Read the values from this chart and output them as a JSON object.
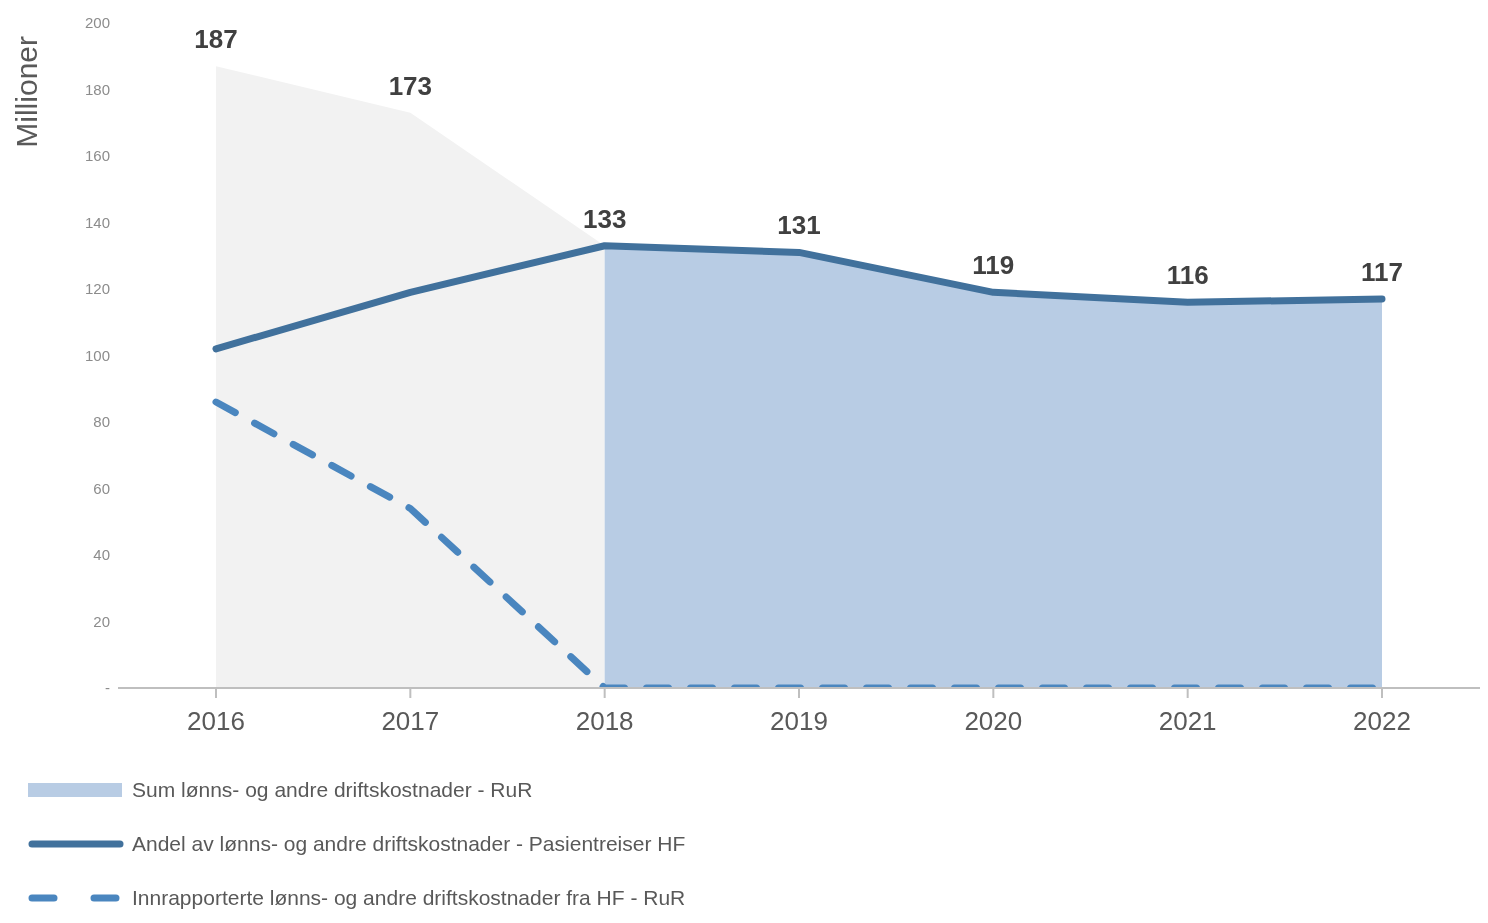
{
  "chart_data": {
    "type": "area",
    "ylabel": "Millioner",
    "categories": [
      "2016",
      "2017",
      "2018",
      "2019",
      "2020",
      "2021",
      "2022"
    ],
    "series": [
      {
        "color": "#f2f2f2",
        "values": [
          187,
          173,
          133,
          null,
          null,
          null,
          null
        ],
        "value_labels": [
          "187",
          "173",
          null,
          null,
          null,
          null,
          null
        ]
      },
      {
        "name": "Sum lønns- og andre driftskostnader - RuR",
        "color": "#b8cce4",
        "values": [
          null,
          null,
          133,
          131,
          119,
          116,
          117
        ],
        "value_labels": [
          null,
          null,
          "133",
          "131",
          "119",
          "116",
          "117"
        ]
      },
      {
        "type": "line",
        "name": "Andel av lønns- og andre driftskostnader - Pasientreiser HF",
        "color": "#41719c",
        "line_style": "solid",
        "values": [
          102,
          119,
          133,
          131,
          119,
          116,
          117
        ]
      },
      {
        "type": "line",
        "name": "Innrapporterte lønns- og andre driftskostnader fra HF - RuR",
        "color": "#4a86bf",
        "line_style": "dashed",
        "values": [
          86,
          54,
          0,
          0,
          0,
          0,
          0
        ]
      }
    ],
    "ylim": [
      0,
      200
    ],
    "yticks": [
      {
        "value": 0,
        "label": "-"
      },
      20,
      40,
      60,
      80,
      100,
      120,
      140,
      160,
      180,
      200
    ],
    "grid": false,
    "legend": "bottom left",
    "marker": "none"
  }
}
